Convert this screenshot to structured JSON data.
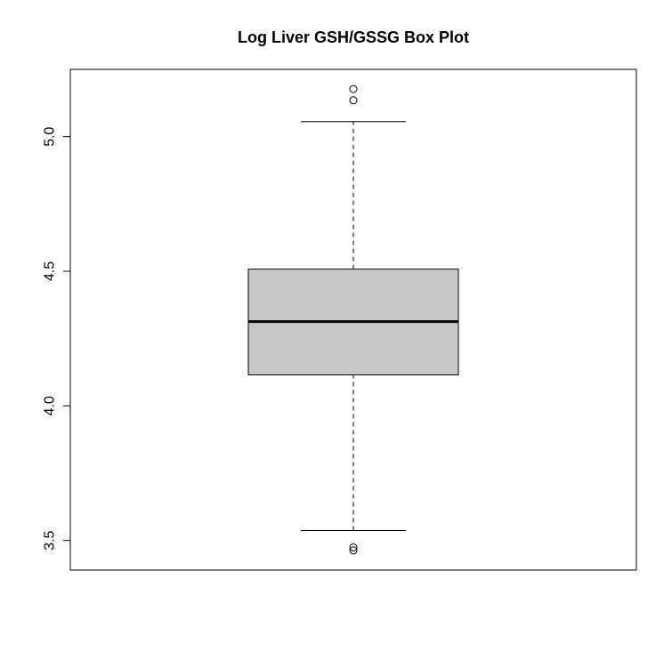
{
  "chart_data": {
    "type": "box",
    "title": "Log Liver GSH/GSSG Box Plot",
    "xlabel": "",
    "ylabel": "",
    "ylim": [
      3.39,
      5.25
    ],
    "yticks": [
      3.5,
      4.0,
      4.5,
      5.0
    ],
    "ytick_labels": [
      "3.5",
      "4.0",
      "4.5",
      "5.0"
    ],
    "grid": false,
    "box": {
      "whisker_low": 3.537,
      "q1": 4.115,
      "median": 4.313,
      "q3": 4.508,
      "whisker_high": 5.056,
      "outliers": [
        5.177,
        5.135,
        3.474,
        3.463
      ]
    },
    "colors": {
      "box_fill": "#c8c8c8",
      "stroke": "#000000"
    }
  }
}
